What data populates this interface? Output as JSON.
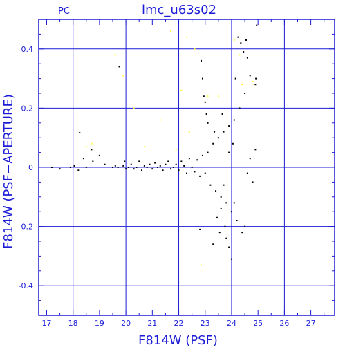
{
  "header": {
    "title": "lmc_u63s02",
    "corner_label": "PC"
  },
  "colors": {
    "frame": "#1c1cd6",
    "grid": "#1c1cd6",
    "points_main": "#000000",
    "points_secondary": "#ffff33"
  },
  "chart_data": {
    "type": "scatter",
    "title": "lmc_u63s02",
    "xlabel": "F814W (PSF)",
    "ylabel": "F814W (PSF−APERTURE)",
    "xlim": [
      16.7,
      27.9
    ],
    "ylim": [
      -0.5,
      0.5
    ],
    "x_ticks": [
      17,
      18,
      19,
      20,
      21,
      22,
      23,
      24,
      25,
      26,
      27
    ],
    "y_ticks": [
      -0.4,
      -0.2,
      0,
      0.2,
      0.4
    ],
    "x_tick_labels": [
      "17",
      "18",
      "19",
      "20",
      "21",
      "22",
      "23",
      "24",
      "25",
      "26",
      "27"
    ],
    "y_tick_labels": [
      "-0.4",
      "-0.2",
      "0",
      "0.2",
      "0.4"
    ],
    "grid": true,
    "series": [
      {
        "color": "black",
        "points": [
          [
            17.2,
            0.0
          ],
          [
            17.5,
            -0.005
          ],
          [
            17.9,
            0.0
          ],
          [
            18.05,
            0.005
          ],
          [
            18.2,
            -0.01
          ],
          [
            18.25,
            0.117
          ],
          [
            18.4,
            0.03
          ],
          [
            18.5,
            0.0
          ],
          [
            18.7,
            0.06
          ],
          [
            18.75,
            0.02
          ],
          [
            19.0,
            0.04
          ],
          [
            19.2,
            0.01
          ],
          [
            19.5,
            0.0
          ],
          [
            19.6,
            0.005
          ],
          [
            19.7,
            0.0
          ],
          [
            19.75,
            0.34
          ],
          [
            19.9,
            0.005
          ],
          [
            19.95,
            0.02
          ],
          [
            20.0,
            -0.005
          ],
          [
            20.1,
            0.0
          ],
          [
            20.2,
            0.01
          ],
          [
            20.3,
            -0.005
          ],
          [
            20.4,
            0.0
          ],
          [
            20.5,
            0.02
          ],
          [
            20.6,
            -0.01
          ],
          [
            20.7,
            0.005
          ],
          [
            20.8,
            0.0
          ],
          [
            20.9,
            0.01
          ],
          [
            21.0,
            -0.005
          ],
          [
            21.1,
            0.015
          ],
          [
            21.2,
            0.0
          ],
          [
            21.3,
            0.005
          ],
          [
            21.4,
            -0.01
          ],
          [
            21.5,
            0.01
          ],
          [
            21.6,
            0.02
          ],
          [
            21.7,
            -0.005
          ],
          [
            21.8,
            0.0
          ],
          [
            21.9,
            0.01
          ],
          [
            22.0,
            -0.01
          ],
          [
            22.1,
            0.02
          ],
          [
            22.2,
            0.005
          ],
          [
            22.3,
            -0.02
          ],
          [
            22.4,
            0.03
          ],
          [
            22.5,
            0.0
          ],
          [
            22.6,
            -0.015
          ],
          [
            22.7,
            0.025
          ],
          [
            22.8,
            -0.03
          ],
          [
            22.9,
            0.04
          ],
          [
            23.0,
            -0.02
          ],
          [
            23.1,
            0.05
          ],
          [
            22.85,
            0.36
          ],
          [
            22.9,
            0.3
          ],
          [
            22.95,
            0.24
          ],
          [
            23.0,
            0.22
          ],
          [
            23.05,
            0.18
          ],
          [
            23.1,
            0.15
          ],
          [
            23.2,
            -0.06
          ],
          [
            23.3,
            0.08
          ],
          [
            23.4,
            -0.08
          ],
          [
            23.5,
            0.1
          ],
          [
            23.6,
            -0.1
          ],
          [
            23.7,
            0.12
          ],
          [
            23.8,
            -0.12
          ],
          [
            23.9,
            0.14
          ],
          [
            24.0,
            -0.15
          ],
          [
            24.1,
            0.16
          ],
          [
            24.2,
            -0.18
          ],
          [
            24.3,
            0.2
          ],
          [
            24.4,
            -0.22
          ],
          [
            24.5,
            0.25
          ],
          [
            24.6,
            -0.02
          ],
          [
            24.7,
            0.03
          ],
          [
            24.8,
            -0.05
          ],
          [
            24.9,
            0.06
          ],
          [
            24.95,
            0.48
          ],
          [
            24.92,
            0.3
          ],
          [
            24.9,
            0.28
          ],
          [
            23.75,
            -0.2
          ],
          [
            23.8,
            -0.24
          ],
          [
            23.9,
            -0.27
          ],
          [
            24.0,
            -0.31
          ],
          [
            23.55,
            -0.22
          ],
          [
            23.45,
            -0.17
          ],
          [
            23.7,
            -0.06
          ],
          [
            23.9,
            0.05
          ],
          [
            24.05,
            0.08
          ],
          [
            24.15,
            0.3
          ],
          [
            24.25,
            0.44
          ],
          [
            24.35,
            0.42
          ],
          [
            24.45,
            0.39
          ],
          [
            24.55,
            0.43
          ],
          [
            24.6,
            0.37
          ],
          [
            24.7,
            0.31
          ],
          [
            22.8,
            -0.21
          ],
          [
            23.3,
            -0.26
          ],
          [
            23.6,
            -0.14
          ],
          [
            24.5,
            -0.2
          ],
          [
            24.1,
            -0.12
          ],
          [
            23.35,
            0.12
          ],
          [
            23.65,
            0.18
          ]
        ]
      },
      {
        "color": "yellow",
        "points": [
          [
            19.6,
            0.38
          ],
          [
            19.9,
            0.31
          ],
          [
            20.3,
            0.2
          ],
          [
            21.3,
            0.16
          ],
          [
            21.7,
            0.46
          ],
          [
            22.1,
            0.26
          ],
          [
            22.3,
            0.44
          ],
          [
            22.6,
            0.4
          ],
          [
            22.85,
            -0.33
          ],
          [
            23.1,
            0.24
          ],
          [
            23.5,
            0.24
          ],
          [
            24.1,
            0.43
          ],
          [
            24.3,
            0.38
          ],
          [
            24.4,
            0.28
          ],
          [
            18.5,
            0.07
          ],
          [
            18.7,
            0.08
          ],
          [
            20.7,
            0.07
          ],
          [
            21.9,
            0.06
          ],
          [
            24.8,
            0.29
          ],
          [
            22.4,
            0.12
          ]
        ]
      }
    ]
  }
}
